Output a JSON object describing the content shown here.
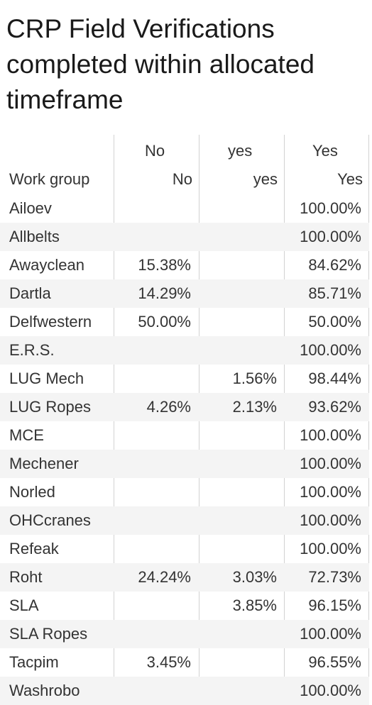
{
  "title": "CRP Field Verifications completed within allocated timeframe",
  "header": {
    "row_dimension_label": "Work group",
    "columns": [
      {
        "top": "No",
        "bottom": "No"
      },
      {
        "top": "yes",
        "bottom": "yes"
      },
      {
        "top": "Yes",
        "bottom": "Yes"
      }
    ]
  },
  "rows": [
    {
      "group": "Ailoev",
      "no": "",
      "yes_lower": "",
      "yes_upper": "100.00%"
    },
    {
      "group": "Allbelts",
      "no": "",
      "yes_lower": "",
      "yes_upper": "100.00%"
    },
    {
      "group": "Awayclean",
      "no": "15.38%",
      "yes_lower": "",
      "yes_upper": "84.62%"
    },
    {
      "group": "Dartla",
      "no": "14.29%",
      "yes_lower": "",
      "yes_upper": "85.71%"
    },
    {
      "group": "Delfwestern",
      "no": "50.00%",
      "yes_lower": "",
      "yes_upper": "50.00%"
    },
    {
      "group": "E.R.S.",
      "no": "",
      "yes_lower": "",
      "yes_upper": "100.00%"
    },
    {
      "group": "LUG Mech",
      "no": "",
      "yes_lower": "1.56%",
      "yes_upper": "98.44%"
    },
    {
      "group": "LUG Ropes",
      "no": "4.26%",
      "yes_lower": "2.13%",
      "yes_upper": "93.62%"
    },
    {
      "group": "MCE",
      "no": "",
      "yes_lower": "",
      "yes_upper": "100.00%"
    },
    {
      "group": "Mechener",
      "no": "",
      "yes_lower": "",
      "yes_upper": "100.00%"
    },
    {
      "group": "Norled",
      "no": "",
      "yes_lower": "",
      "yes_upper": "100.00%"
    },
    {
      "group": "OHCcranes",
      "no": "",
      "yes_lower": "",
      "yes_upper": "100.00%"
    },
    {
      "group": "Refeak",
      "no": "",
      "yes_lower": "",
      "yes_upper": "100.00%"
    },
    {
      "group": "Roht",
      "no": "24.24%",
      "yes_lower": "3.03%",
      "yes_upper": "72.73%"
    },
    {
      "group": "SLA",
      "no": "",
      "yes_lower": "3.85%",
      "yes_upper": "96.15%"
    },
    {
      "group": "SLA Ropes",
      "no": "",
      "yes_lower": "",
      "yes_upper": "100.00%"
    },
    {
      "group": "Tacpim",
      "no": "3.45%",
      "yes_lower": "",
      "yes_upper": "96.55%"
    },
    {
      "group": "Washrobo",
      "no": "",
      "yes_lower": "",
      "yes_upper": "100.00%"
    }
  ],
  "chart_data": {
    "type": "table",
    "title": "CRP Field Verifications completed within allocated timeframe",
    "row_label": "Work group",
    "columns": [
      "No",
      "yes",
      "Yes"
    ],
    "unit": "percent",
    "data": [
      {
        "group": "Ailoev",
        "No": null,
        "yes": null,
        "Yes": 100.0
      },
      {
        "group": "Allbelts",
        "No": null,
        "yes": null,
        "Yes": 100.0
      },
      {
        "group": "Awayclean",
        "No": 15.38,
        "yes": null,
        "Yes": 84.62
      },
      {
        "group": "Dartla",
        "No": 14.29,
        "yes": null,
        "Yes": 85.71
      },
      {
        "group": "Delfwestern",
        "No": 50.0,
        "yes": null,
        "Yes": 50.0
      },
      {
        "group": "E.R.S.",
        "No": null,
        "yes": null,
        "Yes": 100.0
      },
      {
        "group": "LUG Mech",
        "No": null,
        "yes": 1.56,
        "Yes": 98.44
      },
      {
        "group": "LUG Ropes",
        "No": 4.26,
        "yes": 2.13,
        "Yes": 93.62
      },
      {
        "group": "MCE",
        "No": null,
        "yes": null,
        "Yes": 100.0
      },
      {
        "group": "Mechener",
        "No": null,
        "yes": null,
        "Yes": 100.0
      },
      {
        "group": "Norled",
        "No": null,
        "yes": null,
        "Yes": 100.0
      },
      {
        "group": "OHCcranes",
        "No": null,
        "yes": null,
        "Yes": 100.0
      },
      {
        "group": "Refeak",
        "No": null,
        "yes": null,
        "Yes": 100.0
      },
      {
        "group": "Roht",
        "No": 24.24,
        "yes": 3.03,
        "Yes": 72.73
      },
      {
        "group": "SLA",
        "No": null,
        "yes": 3.85,
        "Yes": 96.15
      },
      {
        "group": "SLA Ropes",
        "No": null,
        "yes": null,
        "Yes": 100.0
      },
      {
        "group": "Tacpim",
        "No": 3.45,
        "yes": null,
        "Yes": 96.55
      },
      {
        "group": "Washrobo",
        "No": null,
        "yes": null,
        "Yes": 100.0
      }
    ],
    "colors": {
      "row_band": "#f4f4f4",
      "divider": "#d2d2d2",
      "text": "#333333"
    }
  }
}
